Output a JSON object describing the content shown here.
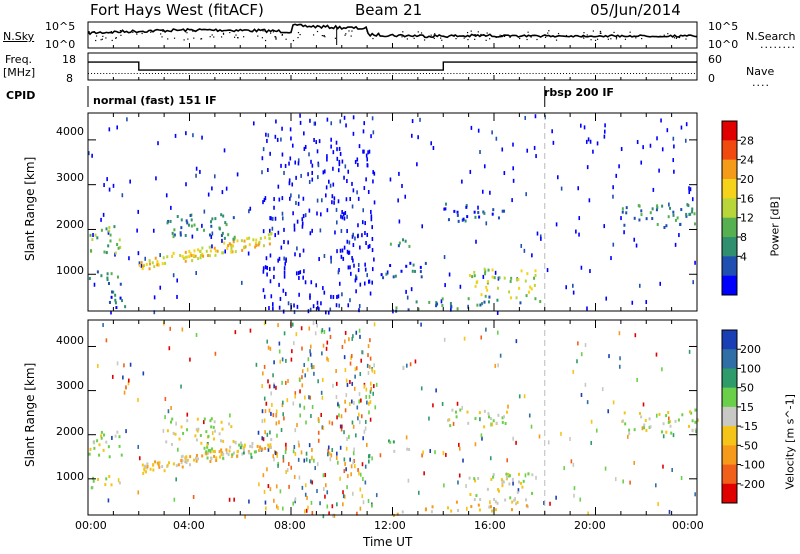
{
  "header": {
    "title": "Fort Hays West (fitACF)",
    "beam": "Beam 21",
    "date": "05/Jun/2014"
  },
  "panels": {
    "noise": {
      "left_label": "N.Sky",
      "right_label": "N.Search",
      "left_ticks": [
        "10^5",
        "10^0"
      ],
      "right_ticks": [
        "10^5",
        "10^0"
      ],
      "right_marker": "........"
    },
    "freq": {
      "left_label_1": "Freq.",
      "left_label_2": "[MHz]",
      "left_ticks": [
        "18",
        "8"
      ],
      "right_label": "Nave",
      "right_ticks": [
        "60",
        "0"
      ],
      "right_marker": "....",
      "freq_steps": [
        {
          "from": 0.0,
          "to": 2.0,
          "mhz": 15.0
        },
        {
          "from": 2.0,
          "to": 14.0,
          "mhz": 10.3
        },
        {
          "from": 14.0,
          "to": 24.0,
          "mhz": 15.0
        }
      ],
      "nave_level": 10
    },
    "cpid": {
      "label": "CPID",
      "segments": [
        {
          "start": 0.0,
          "text": "normal (fast) 151 IF"
        },
        {
          "start": 18.0,
          "text": "rbsp 200 IF"
        }
      ]
    }
  },
  "chart_data": [
    {
      "type": "heatmap",
      "quantity": "Power",
      "ylabel": "Slant Range [km]",
      "xlabel": "Time UT",
      "xlim": [
        0,
        24
      ],
      "ylim": [
        180,
        4600
      ],
      "x_ticks": [
        "00:00",
        "04:00",
        "08:00",
        "12:00",
        "16:00",
        "20:00",
        "00:00"
      ],
      "y_ticks": [
        "1000",
        "2000",
        "3000",
        "4000"
      ],
      "colorbar": {
        "label": "Power [dB]",
        "ticks": [
          "4",
          "8",
          "12",
          "16",
          "20",
          "24",
          "28"
        ],
        "colors": [
          "#0000ff",
          "#1f4fb0",
          "#2f8f6f",
          "#56b04f",
          "#b8d63a",
          "#f5d31a",
          "#f59b1a",
          "#f04a10",
          "#e00000"
        ]
      },
      "blobs": [
        {
          "t0": 0.0,
          "t1": 1.3,
          "r0": 1500,
          "r1": 2150,
          "level": 3
        },
        {
          "t0": 0.0,
          "t1": 1.3,
          "r0": 800,
          "r1": 1100,
          "level": 2
        },
        {
          "t0": 0.7,
          "t1": 1.7,
          "r0": 280,
          "r1": 700,
          "level": 1
        },
        {
          "t0": 2.0,
          "t1": 7.2,
          "r0": 1100,
          "r1": 1850,
          "level": 5
        },
        {
          "t0": 3.0,
          "t1": 5.8,
          "r0": 1800,
          "r1": 2400,
          "level": 2
        },
        {
          "t0": 11.8,
          "t1": 12.8,
          "r0": 1650,
          "r1": 1900,
          "level": 2
        },
        {
          "t0": 11.5,
          "t1": 13.3,
          "r0": 950,
          "r1": 1300,
          "level": 1
        },
        {
          "t0": 12.0,
          "t1": 17.8,
          "r0": 200,
          "r1": 380,
          "level": 2
        },
        {
          "t0": 15.0,
          "t1": 17.6,
          "r0": 500,
          "r1": 1150,
          "level": 4
        },
        {
          "t0": 14.0,
          "t1": 16.5,
          "r0": 2200,
          "r1": 2600,
          "level": 1
        },
        {
          "t0": 21.0,
          "t1": 24.0,
          "r0": 2050,
          "r1": 2600,
          "level": 2
        }
      ]
    },
    {
      "type": "heatmap",
      "quantity": "Velocity",
      "ylabel": "Slant Range [km]",
      "xlabel": "Time UT",
      "xlim": [
        0,
        24
      ],
      "ylim": [
        180,
        4600
      ],
      "x_ticks": [
        "00:00",
        "04:00",
        "08:00",
        "12:00",
        "16:00",
        "20:00",
        "00:00"
      ],
      "y_ticks": [
        "1000",
        "2000",
        "3000",
        "4000"
      ],
      "colorbar": {
        "label": "Velocity [m s^-1]",
        "ticks": [
          "200",
          "100",
          "50",
          "15",
          "-15",
          "-50",
          "-100",
          "-200"
        ],
        "colors": [
          "#1a3fb5",
          "#2f6fa5",
          "#2f9a6a",
          "#6ad04a",
          "#c8c8c4",
          "#f5c418",
          "#f59a1a",
          "#f0601a",
          "#e00000"
        ]
      },
      "blobs": [
        {
          "t0": 0.0,
          "t1": 1.3,
          "r0": 1500,
          "r1": 2150,
          "level": 4
        },
        {
          "t0": 0.0,
          "t1": 1.3,
          "r0": 800,
          "r1": 1100,
          "level": 4
        },
        {
          "t0": 2.0,
          "t1": 7.2,
          "r0": 1100,
          "r1": 1850,
          "level": 5
        },
        {
          "t0": 4.5,
          "t1": 7.0,
          "r0": 1500,
          "r1": 1850,
          "level": 3
        },
        {
          "t0": 3.0,
          "t1": 5.8,
          "r0": 1800,
          "r1": 2400,
          "level": 4
        },
        {
          "t0": 11.8,
          "t1": 12.8,
          "r0": 1650,
          "r1": 1900,
          "level": 3
        },
        {
          "t0": 12.0,
          "t1": 17.8,
          "r0": 200,
          "r1": 380,
          "level": 5
        },
        {
          "t0": 15.0,
          "t1": 17.6,
          "r0": 500,
          "r1": 1150,
          "level": 4
        },
        {
          "t0": 14.0,
          "t1": 16.5,
          "r0": 2200,
          "r1": 2600,
          "level": 4
        },
        {
          "t0": 21.0,
          "t1": 24.0,
          "r0": 2050,
          "r1": 2600,
          "level": 4
        }
      ]
    }
  ]
}
